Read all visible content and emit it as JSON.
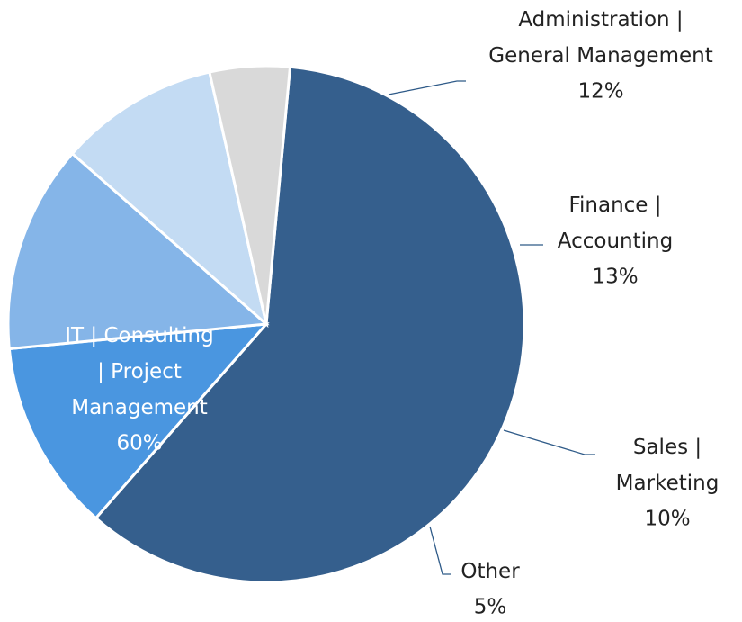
{
  "chart_data": {
    "type": "pie",
    "categories": [
      "IT | Consulting | Project Management",
      "Administration | General Management",
      "Finance | Accounting",
      "Sales | Marketing",
      "Other"
    ],
    "values": [
      60,
      12,
      13,
      10,
      5
    ],
    "value_labels": [
      "60%",
      "12%",
      "13%",
      "10%",
      "5%"
    ],
    "colors": [
      "#355f8d",
      "#4a96e0",
      "#85b5e8",
      "#c3dbf3",
      "#d9d9d9"
    ]
  }
}
